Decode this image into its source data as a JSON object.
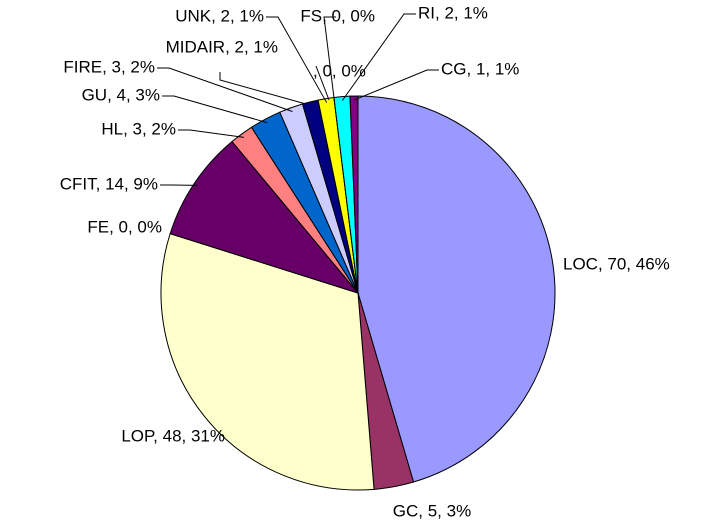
{
  "chart_data": {
    "type": "pie",
    "categories": [
      "LOC",
      "GC",
      "LOP",
      "FE",
      "CFIT",
      "HL",
      "GU",
      "FIRE",
      "MIDAIR",
      null,
      "UNK",
      "FS",
      "RI",
      "CG"
    ],
    "values": [
      70,
      5,
      48,
      0,
      14,
      3,
      4,
      3,
      2,
      0,
      2,
      0,
      2,
      1
    ],
    "value_labels": [
      "LOC, 70, 46%",
      "GC, 5, 3%",
      "LOP, 48, 31%",
      "FE, 0, 0%",
      "CFIT, 14, 9%",
      "HL, 3, 2%",
      "GU, 4, 3%",
      "FIRE, 3, 2%",
      "MIDAIR, 2, 1%",
      ", 0, 0%",
      "UNK, 2, 1%",
      "FS, 0, 0%",
      "RI, 2, 1%",
      "CG, 1, 1%"
    ],
    "colors": [
      "#9999ff",
      "#993366",
      "#ffffcc",
      "#ccffff",
      "#660066",
      "#ff8080",
      "#0066cc",
      "#ccccff",
      "#000080",
      "#ff00ff",
      "#ffff00",
      "#ff00ff",
      "#00ffff",
      "#800080"
    ]
  }
}
